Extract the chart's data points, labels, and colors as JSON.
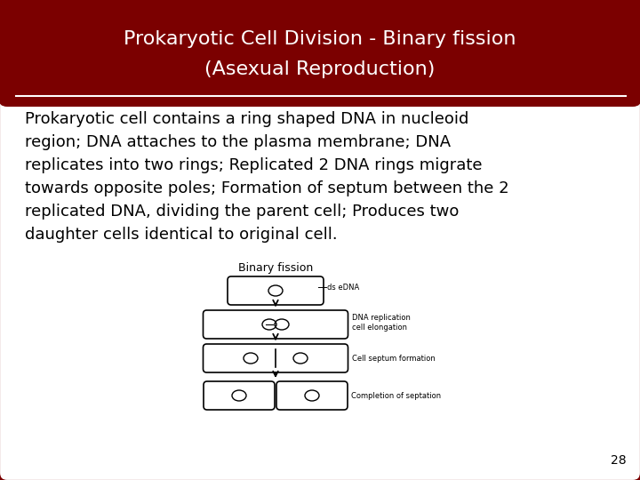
{
  "title_line1": "Prokaryotic Cell Division - Binary fission",
  "title_line2": "(Asexual Reproduction)",
  "title_bg_color": "#7B0000",
  "title_text_color": "#FFFFFF",
  "body_bg_color": "#FFFFFF",
  "border_color": "#7B0000",
  "body_text_lines": [
    "Prokaryotic cell contains a ring shaped DNA in nucleoid",
    "region; DNA attaches to the plasma membrane; DNA",
    "replicates into two rings; Replicated 2 DNA rings migrate",
    "towards opposite poles; Formation of septum between the 2",
    "replicated DNA, dividing the parent cell; Produces two",
    "daughter cells identical to original cell."
  ],
  "body_text_color": "#000000",
  "diagram_title": "Binary fission",
  "label1": "ds eDNA",
  "label2": "DNA replication\ncell elongation",
  "label3": "Cell septum formation",
  "label4": "Completion of septation",
  "page_number": "28",
  "page_number_color": "#000000",
  "title_fontsize": 16,
  "body_fontsize": 13,
  "diagram_title_fontsize": 9,
  "diagram_label_fontsize": 6
}
